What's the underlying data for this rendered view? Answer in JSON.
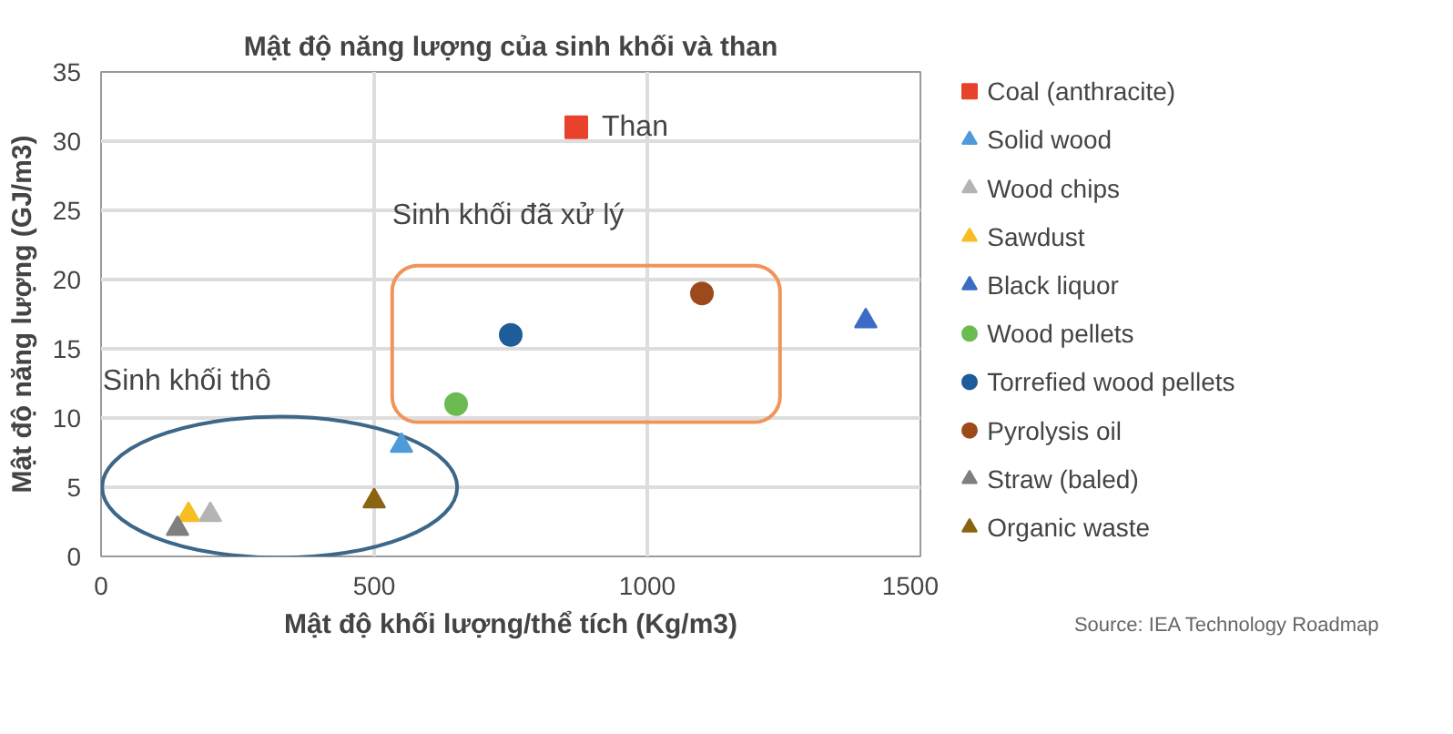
{
  "chart_data": {
    "type": "scatter",
    "title": "Mật độ năng lượng của sinh khối và than",
    "xlabel": "Mật độ khối lượng/thể tích (Kg/m3)",
    "ylabel": "Mật độ năng lượng (GJ/m3)",
    "xlim": [
      0,
      1500
    ],
    "xticks": [
      0,
      500,
      1000,
      1500
    ],
    "ylim": [
      0,
      35
    ],
    "yticks": [
      0,
      5,
      10,
      15,
      20,
      25,
      30,
      35
    ],
    "grid": true,
    "legend": "right",
    "series": [
      {
        "name": "Coal (anthracite)",
        "color": "#e8412c",
        "marker": "square",
        "x": [
          870
        ],
        "values": [
          31
        ]
      },
      {
        "name": "Solid wood",
        "color": "#4f9bd9",
        "marker": "triangle",
        "x": [
          550
        ],
        "values": [
          8
        ]
      },
      {
        "name": "Wood chips",
        "color": "#b4b4b4",
        "marker": "triangle",
        "x": [
          200
        ],
        "values": [
          3
        ]
      },
      {
        "name": "Sawdust",
        "color": "#f7bd22",
        "marker": "triangle",
        "x": [
          160
        ],
        "values": [
          3
        ]
      },
      {
        "name": "Black liquor",
        "color": "#3c6cc4",
        "marker": "triangle",
        "x": [
          1400
        ],
        "values": [
          17
        ]
      },
      {
        "name": "Wood pellets",
        "color": "#6cbb50",
        "marker": "circle",
        "x": [
          650
        ],
        "values": [
          11
        ]
      },
      {
        "name": "Torrefied wood pellets",
        "color": "#1f5c9a",
        "marker": "circle",
        "x": [
          750
        ],
        "values": [
          16
        ]
      },
      {
        "name": "Pyrolysis oil",
        "color": "#9c4a1c",
        "marker": "circle",
        "x": [
          1100
        ],
        "values": [
          19
        ]
      },
      {
        "name": "Straw (baled)",
        "color": "#7f7f7f",
        "marker": "triangle",
        "x": [
          140
        ],
        "values": [
          2
        ]
      },
      {
        "name": "Organic waste",
        "color": "#8a6410",
        "marker": "triangle",
        "x": [
          500
        ],
        "values": [
          4
        ]
      }
    ],
    "annotations": [
      {
        "text": "Than",
        "x": 870,
        "y": 31
      },
      "Sinh khối đã xử lý",
      "Sinh khối thô",
      "Source: IEA Technology Roadmap"
    ]
  }
}
